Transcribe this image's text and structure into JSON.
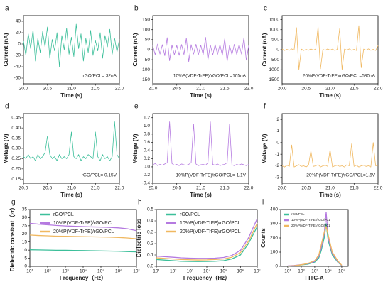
{
  "chart_data": [
    {
      "type": "line",
      "panel": "a",
      "xlabel": "Time (s)",
      "ylabel": "Current (nA)",
      "annotation": "rGO/PCL= 32nA",
      "color": "#3cbf9a",
      "x": [
        20.0,
        20.05,
        20.1,
        20.15,
        20.2,
        20.25,
        20.3,
        20.35,
        20.4,
        20.45,
        20.5,
        20.55,
        20.6,
        20.65,
        20.7,
        20.75,
        20.8,
        20.85,
        20.9,
        20.95,
        21.0,
        21.05,
        21.1,
        21.15,
        21.2,
        21.25,
        21.3,
        21.35,
        21.4,
        21.45,
        21.5,
        21.55,
        21.6,
        21.65,
        21.7,
        21.75,
        21.8,
        21.85,
        21.9,
        21.95,
        22.0
      ],
      "values": [
        5,
        -20,
        18,
        -8,
        25,
        -30,
        10,
        -15,
        22,
        -5,
        30,
        -25,
        8,
        -12,
        20,
        -40,
        15,
        -10,
        28,
        -18,
        12,
        -22,
        35,
        -8,
        18,
        -30,
        10,
        -15,
        24,
        -20,
        6,
        -12,
        20,
        -25,
        15,
        -5,
        26,
        -18,
        10,
        -14,
        8
      ],
      "xlim": [
        20,
        22
      ],
      "xticks": [
        {
          "value": 20,
          "label": "20.0"
        },
        20.5,
        {
          "value": 21,
          "label": "21.0"
        },
        21.5,
        {
          "value": 22,
          "label": "22.0"
        }
      ],
      "ylim": [
        -70,
        50
      ],
      "yticks": [
        -60,
        -40,
        -20,
        0,
        20,
        40
      ]
    },
    {
      "type": "line",
      "panel": "b",
      "xlabel": "Time (s)",
      "ylabel": "Current (nA)",
      "annotation": "10%P(VDF-TrFE)/rGO/PCL=105nA",
      "color": "#b57ae0",
      "x": [
        20.0,
        20.05,
        20.1,
        20.15,
        20.2,
        20.25,
        20.3,
        20.35,
        20.4,
        20.45,
        20.5,
        20.55,
        20.6,
        20.65,
        20.7,
        20.75,
        20.8,
        20.85,
        20.9,
        20.95,
        21.0,
        21.05,
        21.1,
        21.15,
        21.2,
        21.25,
        21.3,
        21.35,
        21.4,
        21.45,
        21.5,
        21.55,
        21.6,
        21.65,
        21.7,
        21.75,
        21.8,
        21.85,
        21.9,
        21.95,
        22.0
      ],
      "values": [
        20,
        -25,
        28,
        -22,
        25,
        -30,
        60,
        -55,
        24,
        -26,
        22,
        -28,
        26,
        -24,
        58,
        -60,
        25,
        -22,
        27,
        -26,
        23,
        -25,
        62,
        -50,
        24,
        -27,
        26,
        -23,
        25,
        -28,
        55,
        -58,
        22,
        -25,
        27,
        -24,
        26,
        -22,
        60,
        -52,
        20
      ],
      "xlim": [
        20,
        22
      ],
      "xticks": [
        {
          "value": 20,
          "label": "20.0"
        },
        20.5,
        {
          "value": 21,
          "label": "21.0"
        },
        21.5,
        {
          "value": 22,
          "label": "22.0"
        }
      ],
      "ylim": [
        -170,
        170
      ],
      "yticks": [
        -150,
        -100,
        -50,
        0,
        50,
        100,
        150
      ]
    },
    {
      "type": "line",
      "panel": "c",
      "xlabel": "Time (s)",
      "ylabel": "Current (nA)",
      "annotation": "20%P(VDF-TrFE)/rGO/PCL=580nA",
      "color": "#f0b860",
      "x": [
        20.0,
        20.05,
        20.1,
        20.15,
        20.2,
        20.25,
        20.3,
        20.35,
        20.4,
        20.45,
        20.5,
        20.55,
        20.6,
        20.65,
        20.7,
        20.75,
        20.8,
        20.85,
        20.9,
        20.95,
        21.0,
        21.05,
        21.1,
        21.15,
        21.2,
        21.25,
        21.3,
        21.35,
        21.4,
        21.45,
        21.5,
        21.55,
        21.6,
        21.65,
        21.7,
        21.75,
        21.8,
        21.85,
        21.9,
        21.95,
        22.0
      ],
      "values": [
        30,
        -40,
        20,
        -30,
        40,
        -20,
        1100,
        -1000,
        30,
        -40,
        20,
        -30,
        40,
        -20,
        30,
        1150,
        -950,
        20,
        -30,
        40,
        -20,
        30,
        -40,
        20,
        1050,
        -1000,
        30,
        -20,
        40,
        -30,
        20,
        -40,
        1200,
        -900,
        30,
        -20,
        40,
        -30,
        20,
        -40,
        200
      ],
      "xlim": [
        20,
        22
      ],
      "xticks": [
        {
          "value": 20,
          "label": "20.0"
        },
        20.5,
        {
          "value": 21,
          "label": "21.0"
        },
        21.5,
        {
          "value": 22,
          "label": "22.0"
        }
      ],
      "ylim": [
        -1700,
        1700
      ],
      "yticks": [
        -1500,
        -1000,
        -500,
        0,
        500,
        1000,
        1500
      ]
    },
    {
      "type": "line",
      "panel": "d",
      "xlabel": "Time (s)",
      "ylabel": "Voltage (V)",
      "annotation": "rGO/PCL= 0.15V",
      "color": "#3cbf9a",
      "x": [
        20.0,
        20.05,
        20.1,
        20.15,
        20.2,
        20.25,
        20.3,
        20.35,
        20.4,
        20.45,
        20.5,
        20.55,
        20.6,
        20.65,
        20.7,
        20.75,
        20.8,
        20.85,
        20.9,
        20.95,
        21.0,
        21.05,
        21.1,
        21.15,
        21.2,
        21.25,
        21.3,
        21.35,
        21.4,
        21.45,
        21.5,
        21.55,
        21.6,
        21.65,
        21.7,
        21.75,
        21.8,
        21.85,
        21.9,
        21.95,
        22.0
      ],
      "values": [
        0.26,
        0.25,
        0.27,
        0.25,
        0.26,
        0.24,
        0.27,
        0.25,
        0.26,
        0.28,
        0.36,
        0.27,
        0.25,
        0.26,
        0.24,
        0.27,
        0.25,
        0.26,
        0.25,
        0.27,
        0.38,
        0.26,
        0.25,
        0.27,
        0.24,
        0.26,
        0.25,
        0.27,
        0.26,
        0.25,
        0.38,
        0.26,
        0.24,
        0.27,
        0.25,
        0.26,
        0.24,
        0.26,
        0.43,
        0.27,
        0.25
      ],
      "xlim": [
        20,
        22
      ],
      "xticks": [
        {
          "value": 20,
          "label": "20.0"
        },
        20.5,
        {
          "value": 21,
          "label": "21.0"
        },
        21.5,
        {
          "value": 22,
          "label": "22.0"
        }
      ],
      "ylim": [
        0.13,
        0.47
      ],
      "yticks": [
        0.15,
        {
          "value": 0.2,
          "label": "0.20"
        },
        0.25,
        {
          "value": 0.3,
          "label": "0.30"
        },
        0.35,
        {
          "value": 0.4,
          "label": "0.40"
        },
        0.45
      ]
    },
    {
      "type": "line",
      "panel": "e",
      "xlabel": "Time (s)",
      "ylabel": "Voltage (V)",
      "annotation": "10%P(VDF-TrFE)/rGO/PCL= 1.1V",
      "color": "#b57ae0",
      "x": [
        20.0,
        20.05,
        20.1,
        20.15,
        20.2,
        20.25,
        20.3,
        20.35,
        20.4,
        20.45,
        20.5,
        20.55,
        20.6,
        20.65,
        20.7,
        20.75,
        20.8,
        20.85,
        20.9,
        20.95,
        21.0,
        21.05,
        21.1,
        21.15,
        21.2,
        21.25,
        21.3,
        21.35,
        21.4,
        21.45,
        21.5,
        21.55,
        21.6,
        21.65,
        21.7,
        21.75,
        21.8,
        21.85,
        21.9,
        21.95,
        22.0
      ],
      "values": [
        0.05,
        0.08,
        0.03,
        0.06,
        0.04,
        0.07,
        0.1,
        1.1,
        0.08,
        0.04,
        0.06,
        0.03,
        0.07,
        0.05,
        0.04,
        0.06,
        0.1,
        1.05,
        0.07,
        0.03,
        0.05,
        0.06,
        0.04,
        0.1,
        1.1,
        0.06,
        0.04,
        0.07,
        0.03,
        0.05,
        0.06,
        0.1,
        1.05,
        0.05,
        0.03,
        0.06,
        0.04,
        0.07,
        0.05,
        0.03,
        0.06
      ],
      "xlim": [
        20,
        22
      ],
      "xticks": [
        {
          "value": 20,
          "label": "20.0"
        },
        20.5,
        {
          "value": 21,
          "label": "21.0"
        },
        21.5,
        {
          "value": 22,
          "label": "22.0"
        }
      ],
      "ylim": [
        -0.4,
        1.3
      ],
      "yticks": [
        -0.4,
        -0.2,
        {
          "value": 0,
          "label": "0.0"
        },
        0.2,
        0.4,
        0.6,
        0.8,
        {
          "value": 1,
          "label": "1.0"
        },
        1.2
      ]
    },
    {
      "type": "line",
      "panel": "f",
      "xlabel": "Time (s)",
      "ylabel": "Voltage (V)",
      "annotation": "20%P(VDF-TrFE)/rGO/PCL=1.6V",
      "color": "#f0b860",
      "x": [
        20.0,
        20.05,
        20.1,
        20.15,
        20.2,
        20.25,
        20.3,
        20.35,
        20.4,
        20.45,
        20.5,
        20.55,
        20.6,
        20.65,
        20.7,
        20.75,
        20.8,
        20.85,
        20.9,
        20.95,
        21.0,
        21.05,
        21.1,
        21.15,
        21.2,
        21.25,
        21.3,
        21.35,
        21.4,
        21.45,
        21.5,
        21.55,
        21.6,
        21.65,
        21.7,
        21.75,
        21.8,
        21.85,
        21.9,
        21.95,
        22.0
      ],
      "values": [
        -2.0,
        -2.1,
        -1.95,
        -2.05,
        -0.2,
        -2.1,
        -2.0,
        -1.9,
        -2.05,
        -2.0,
        -2.1,
        -1.95,
        -0.7,
        -2.05,
        -2.0,
        -1.9,
        -2.1,
        -2.0,
        -1.95,
        -2.05,
        -0.6,
        -2.1,
        -2.0,
        -1.95,
        -2.05,
        -2.0,
        -2.1,
        -1.9,
        -2.0,
        -0.1,
        -2.05,
        -1.95,
        -2.1,
        -2.0,
        -1.95,
        -2.05,
        -2.0,
        -2.1,
        0.0,
        -2.0,
        -1.95
      ],
      "xlim": [
        20,
        22
      ],
      "xticks": [
        {
          "value": 20,
          "label": "20.0"
        },
        20.5,
        {
          "value": 21,
          "label": "21.0"
        },
        21.5,
        {
          "value": 22,
          "label": "22.0"
        }
      ],
      "ylim": [
        -3.5,
        2.5
      ],
      "yticks": [
        -3,
        -2,
        -1,
        0,
        1,
        2
      ]
    },
    {
      "type": "line",
      "panel": "g",
      "xlabel": "Frequency（Hz）",
      "ylabel": "Dielectric constant（εr）",
      "xlog": true,
      "legend": "upper left",
      "x": [
        10,
        30,
        100,
        300,
        1000,
        3000,
        10000,
        30000,
        100000,
        300000,
        1000000,
        3000000,
        10000000
      ],
      "series": [
        {
          "name": "rGO/PCL",
          "color": "#3cbf9a",
          "values": [
            10.2,
            10.1,
            10,
            9.9,
            9.9,
            9.8,
            9.7,
            9.6,
            9.5,
            9.4,
            9.3,
            9.1,
            8.9
          ]
        },
        {
          "name": "10%P(VDF-TrFE)/rGO/PCL",
          "color": "#b57ae0",
          "values": [
            26.5,
            26,
            25.6,
            25.2,
            24.9,
            24.7,
            24.5,
            24.3,
            24.2,
            24,
            23.7,
            23.2,
            22
          ]
        },
        {
          "name": "20%P(VDF-TrFE)/rGO/PCL",
          "color": "#f0b860",
          "values": [
            19.3,
            19,
            18.8,
            18.6,
            18.5,
            18.4,
            18.3,
            18.2,
            18.1,
            18,
            17.8,
            17.5,
            17
          ]
        }
      ],
      "xlim": [
        10,
        10000000
      ],
      "xticks": [
        {
          "value": 10,
          "label": "10¹"
        },
        {
          "value": 100,
          "label": "10²"
        },
        {
          "value": 1000,
          "label": "10³"
        },
        {
          "value": 10000,
          "label": "10⁴"
        },
        {
          "value": 100000,
          "label": "10⁵"
        },
        {
          "value": 1000000,
          "label": "10⁶"
        },
        {
          "value": 10000000,
          "label": "10⁷"
        }
      ],
      "ylim": [
        0,
        35
      ],
      "yticks": [
        0,
        5,
        10,
        15,
        20,
        25,
        30,
        35
      ]
    },
    {
      "type": "line",
      "panel": "h",
      "xlabel": "Frequency（Hz）",
      "ylabel": "Dielectric loss",
      "xlog": true,
      "legend": "upper left",
      "x": [
        10,
        30,
        100,
        300,
        1000,
        3000,
        10000,
        30000,
        100000,
        300000,
        1000000,
        3000000,
        10000000
      ],
      "series": [
        {
          "name": "rGO/PCL",
          "color": "#3cbf9a",
          "values": [
            0.06,
            0.055,
            0.05,
            0.045,
            0.043,
            0.042,
            0.043,
            0.045,
            0.05,
            0.065,
            0.1,
            0.2,
            0.35
          ]
        },
        {
          "name": "10%P(VDF-TrFE)/rGO/PCL",
          "color": "#b57ae0",
          "values": [
            0.09,
            0.085,
            0.08,
            0.075,
            0.072,
            0.07,
            0.07,
            0.072,
            0.078,
            0.095,
            0.14,
            0.25,
            0.42
          ]
        },
        {
          "name": "20%P(VDF-TrFE)/rGO/PCL",
          "color": "#f0b860",
          "values": [
            0.075,
            0.07,
            0.065,
            0.06,
            0.058,
            0.056,
            0.057,
            0.06,
            0.065,
            0.08,
            0.12,
            0.22,
            0.38
          ]
        }
      ],
      "xlim": [
        10,
        10000000
      ],
      "xticks": [
        {
          "value": 10,
          "label": "10¹"
        },
        {
          "value": 100,
          "label": "10²"
        },
        {
          "value": 1000,
          "label": "10³"
        },
        {
          "value": 10000,
          "label": "10⁴"
        },
        {
          "value": 100000,
          "label": "10⁵"
        },
        {
          "value": 1000000,
          "label": "10⁶"
        },
        {
          "value": 10000000,
          "label": "10⁷"
        }
      ],
      "ylim": [
        0,
        0.5
      ],
      "yticks": [
        {
          "value": 0,
          "label": "0.0"
        },
        0.1,
        0.2,
        0.3,
        0.4,
        0.5
      ]
    },
    {
      "type": "line",
      "panel": "i",
      "xlabel": "FITC-A",
      "ylabel": "Counts",
      "xlog": true,
      "legend": "upper left",
      "x": [
        10,
        30,
        100,
        300,
        1000,
        2000,
        3000,
        5000,
        7000,
        10000,
        20000,
        50000,
        100000
      ],
      "series": [
        {
          "name": "rGO/PCL",
          "color": "#3cbf9a",
          "values": [
            2,
            5,
            10,
            15,
            30,
            60,
            110,
            200,
            300,
            180,
            80,
            30,
            5
          ]
        },
        {
          "name": "10%P(VDF-TrFE)/rGO/PCL",
          "color": "#b57ae0",
          "values": [
            3,
            6,
            12,
            18,
            35,
            70,
            130,
            230,
            380,
            200,
            90,
            35,
            6
          ]
        },
        {
          "name": "20%P(VDF-TrFE)/rGO/PCL",
          "color": "#f0b860",
          "values": [
            2,
            4,
            11,
            20,
            40,
            80,
            150,
            240,
            280,
            220,
            100,
            40,
            8
          ]
        }
      ],
      "xlim": [
        3,
        300000
      ],
      "xticks": [
        {
          "value": 10,
          "label": "10¹"
        },
        {
          "value": 100,
          "label": "10²"
        },
        {
          "value": 1000,
          "label": "10³"
        },
        {
          "value": 10000,
          "label": "10⁴"
        },
        {
          "value": 100000,
          "label": "10⁵"
        }
      ],
      "ylim": [
        0,
        400
      ],
      "yticks": [
        0,
        100,
        200,
        300,
        400
      ]
    }
  ]
}
